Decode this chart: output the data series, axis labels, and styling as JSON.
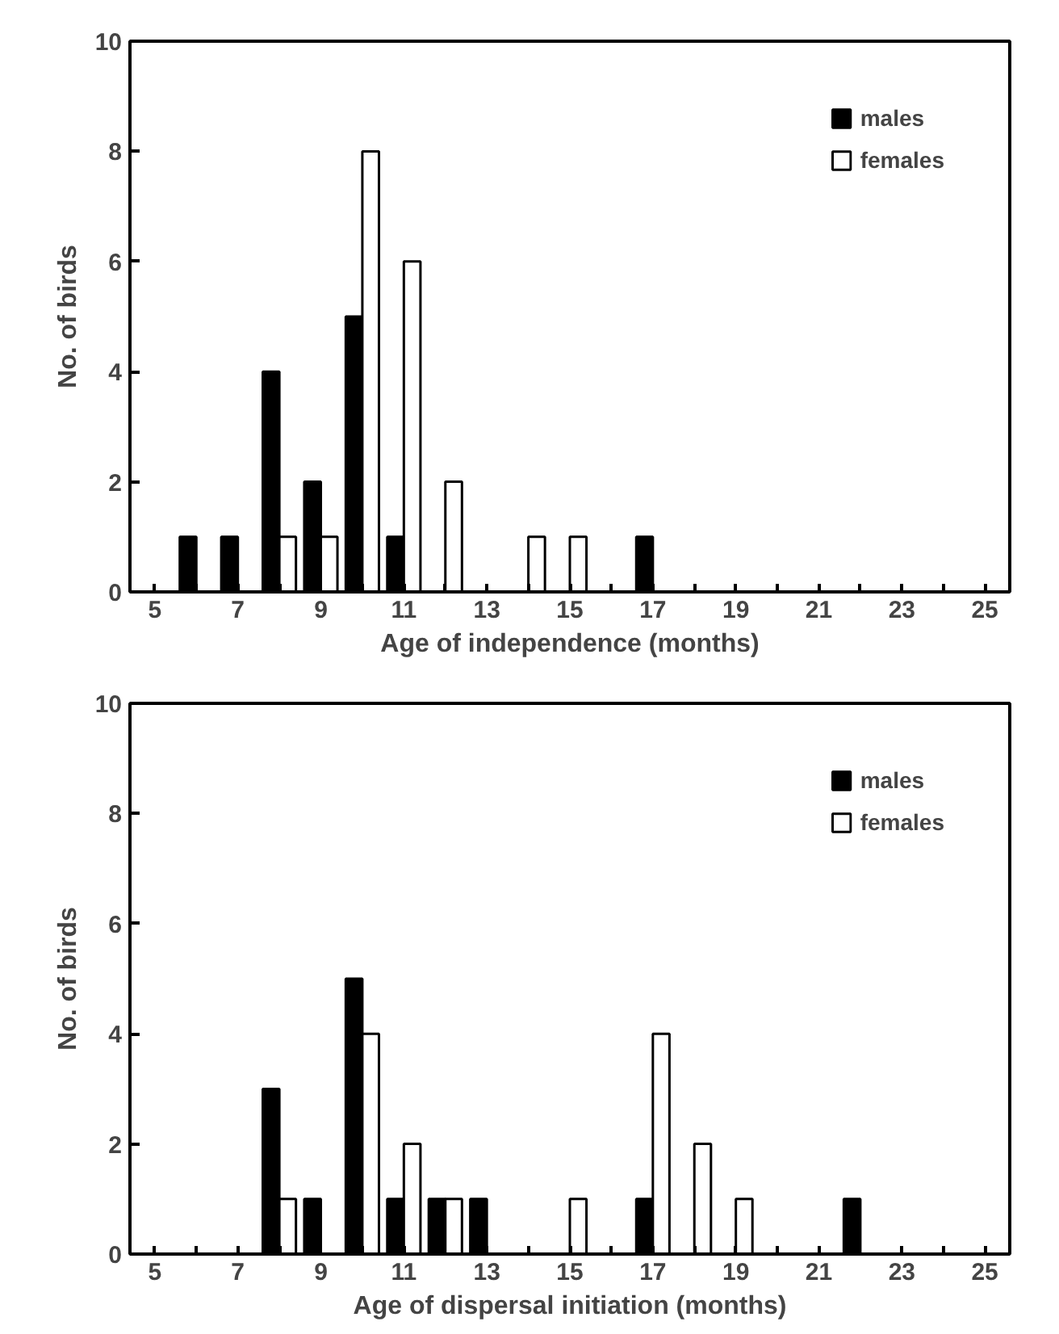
{
  "chart_data": [
    {
      "type": "bar",
      "xlabel": "Age of independence (months)",
      "ylabel": "No. of birds",
      "categories": [
        "5",
        null,
        "7",
        null,
        "9",
        null,
        "11",
        null,
        "13",
        null,
        "15",
        null,
        "17",
        null,
        "19",
        null,
        "21",
        null,
        "23",
        null,
        "25"
      ],
      "series": [
        {
          "name": "males",
          "color": "#000000",
          "values": [
            0,
            1,
            1,
            4,
            2,
            5,
            1,
            0,
            0,
            0,
            0,
            0,
            1,
            0,
            0,
            0,
            0,
            0,
            0,
            0,
            0
          ]
        },
        {
          "name": "females",
          "color": "#ffffff",
          "values": [
            0,
            0,
            0,
            1,
            1,
            8,
            6,
            2,
            0,
            1,
            1,
            0,
            0,
            0,
            0,
            0,
            0,
            0,
            0,
            0,
            0
          ]
        }
      ],
      "ylim": [
        0,
        10
      ],
      "yticks": [
        0,
        2,
        4,
        6,
        8,
        10
      ],
      "grid": false,
      "legend": "top right"
    },
    {
      "type": "bar",
      "xlabel": "Age of dispersal initiation (months)",
      "ylabel": "No. of birds",
      "categories": [
        "5",
        null,
        "7",
        null,
        "9",
        null,
        "11",
        null,
        "13",
        null,
        "15",
        null,
        "17",
        null,
        "19",
        null,
        "21",
        null,
        "23",
        null,
        "25"
      ],
      "series": [
        {
          "name": "males",
          "color": "#000000",
          "values": [
            0,
            0,
            0,
            3,
            1,
            5,
            1,
            1,
            1,
            0,
            0,
            0,
            1,
            0,
            0,
            0,
            0,
            1,
            0,
            0,
            0
          ]
        },
        {
          "name": "females",
          "color": "#ffffff",
          "values": [
            0,
            0,
            0,
            1,
            0,
            4,
            2,
            1,
            0,
            0,
            1,
            0,
            4,
            2,
            1,
            0,
            0,
            0,
            0,
            0,
            0
          ]
        }
      ],
      "ylim": [
        0,
        10
      ],
      "yticks": [
        0,
        2,
        4,
        6,
        8,
        10
      ],
      "grid": false,
      "legend": "top right"
    }
  ]
}
